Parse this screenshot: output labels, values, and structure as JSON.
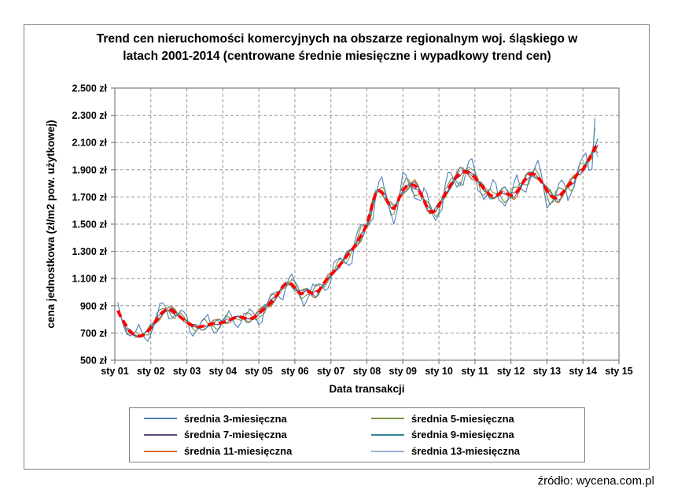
{
  "source_note": "źródło: wycena.com.pl",
  "chart_data": {
    "type": "line",
    "title_line1": "Trend cen nieruchomości komercyjnych na obszarze regionalnym woj. śląskiego w",
    "title_line2": "latach 2001-2014 (centrowane średnie miesięczne i wypadkowy trend cen)",
    "xlabel": "Data transakcji",
    "ylabel": "cena jednostkowa (zł/m2 pow. użytkowej)",
    "x_tick_labels": [
      "sty 01",
      "sty 02",
      "sty 03",
      "sty 04",
      "sty 05",
      "sty 06",
      "sty 07",
      "sty 08",
      "sty 09",
      "sty 10",
      "sty 11",
      "sty 12",
      "sty 13",
      "sty 14",
      "sty 15"
    ],
    "y_tick_labels": [
      "500 zł",
      "700 zł",
      "900 zł",
      "1.100 zł",
      "1.300 zł",
      "1.500 zł",
      "1.700 zł",
      "1.900 zł",
      "2.100 zł",
      "2.300 zł",
      "2.500 zł"
    ],
    "ylim": [
      500,
      2500
    ],
    "y_step": 200,
    "x_total_months": 168,
    "months_per_x_tick": 12,
    "grid": "dashed",
    "legend_position": "bottom-box",
    "axis_color": "#7f7f7f",
    "gridline_color": "#969696",
    "trend": {
      "label": "wypadkowy trend cen",
      "color": "#FF0000",
      "style": "bold-dashed",
      "start_month_index": 1,
      "start_month": "lut 2001",
      "values": [
        865,
        820,
        782,
        745,
        716,
        695,
        682,
        676,
        680,
        692,
        712,
        738,
        768,
        800,
        830,
        855,
        870,
        874,
        868,
        852,
        834,
        815,
        797,
        780,
        764,
        752,
        746,
        744,
        748,
        754,
        760,
        766,
        770,
        772,
        774,
        777,
        783,
        792,
        803,
        813,
        819,
        817,
        811,
        806,
        804,
        810,
        824,
        843,
        863,
        884,
        903,
        923,
        948,
        977,
        1012,
        1042,
        1063,
        1070,
        1058,
        1032,
        1005,
        988,
        995,
        1010,
        1000,
        988,
        992,
        1012,
        1043,
        1075,
        1105,
        1128,
        1150,
        1175,
        1200,
        1228,
        1258,
        1285,
        1310,
        1340,
        1375,
        1415,
        1455,
        1500,
        1575,
        1660,
        1730,
        1748,
        1735,
        1700,
        1660,
        1625,
        1615,
        1650,
        1705,
        1748,
        1775,
        1788,
        1790,
        1783,
        1760,
        1722,
        1675,
        1628,
        1596,
        1588,
        1603,
        1638,
        1678,
        1718,
        1755,
        1790,
        1822,
        1852,
        1872,
        1883,
        1885,
        1878,
        1862,
        1845,
        1818,
        1788,
        1762,
        1738,
        1715,
        1703,
        1707,
        1720,
        1735,
        1730,
        1719,
        1711,
        1715,
        1738,
        1768,
        1805,
        1840,
        1862,
        1871,
        1864,
        1843,
        1818,
        1783,
        1746,
        1713,
        1697,
        1692,
        1701,
        1726,
        1750,
        1781,
        1805,
        1826,
        1864,
        1886,
        1902,
        1940,
        1977,
        2020,
        2065,
        2075
      ]
    },
    "series": [
      {
        "name": "średnia 3-miesięczna",
        "window": 3,
        "color": "#4F81BD",
        "start_month_index": 1,
        "end_month_index": 160,
        "end_value": 2280,
        "jitter": 6,
        "phase": 0
      },
      {
        "name": "średnia 5-miesięczna",
        "window": 5,
        "color": "#77933C",
        "start_month_index": 2,
        "end_month_index": 160,
        "end_value": 2210,
        "jitter": 9,
        "phase": 1.1
      },
      {
        "name": "średnia 7-miesięczna",
        "window": 7,
        "color": "#60497B",
        "start_month_index": 3,
        "end_month_index": 161,
        "end_value": 2085,
        "jitter": 10,
        "phase": 2.3
      },
      {
        "name": "średnia 9-miesięczna",
        "window": 9,
        "color": "#31859C",
        "start_month_index": 4,
        "end_month_index": 161,
        "end_value": 2130,
        "jitter": 11,
        "phase": 3.4
      },
      {
        "name": "średnia 11-miesięczna",
        "window": 11,
        "color": "#E46C0A",
        "start_month_index": 5,
        "end_month_index": 161,
        "end_value": 2020,
        "jitter": 12,
        "phase": 4.2
      },
      {
        "name": "średnia 13-miesięczna",
        "window": 13,
        "color": "#95B3D7",
        "start_month_index": 6,
        "end_month_index": 161,
        "end_value": 1990,
        "jitter": 13,
        "phase": 5.0
      }
    ]
  }
}
